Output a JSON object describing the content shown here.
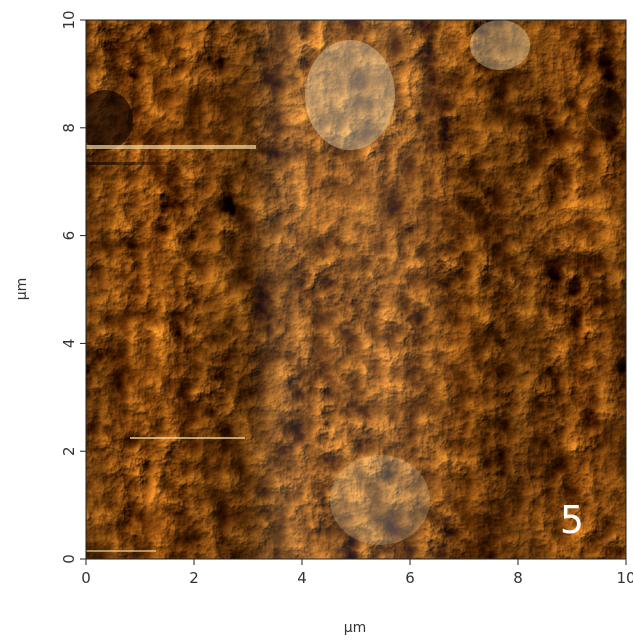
{
  "figure": {
    "panel_label": "5",
    "x_axis": {
      "label": "µm",
      "range": [
        0,
        10
      ],
      "ticks": [
        "0",
        "2",
        "4",
        "6",
        "8",
        "10"
      ]
    },
    "y_axis": {
      "label": "µm",
      "range": [
        0,
        10
      ],
      "ticks": [
        "0",
        "2",
        "4",
        "6",
        "8",
        "10"
      ]
    },
    "colors": {
      "dark": "#2a1200",
      "mid": "#a8661a",
      "light": "#f7e6b8"
    }
  }
}
